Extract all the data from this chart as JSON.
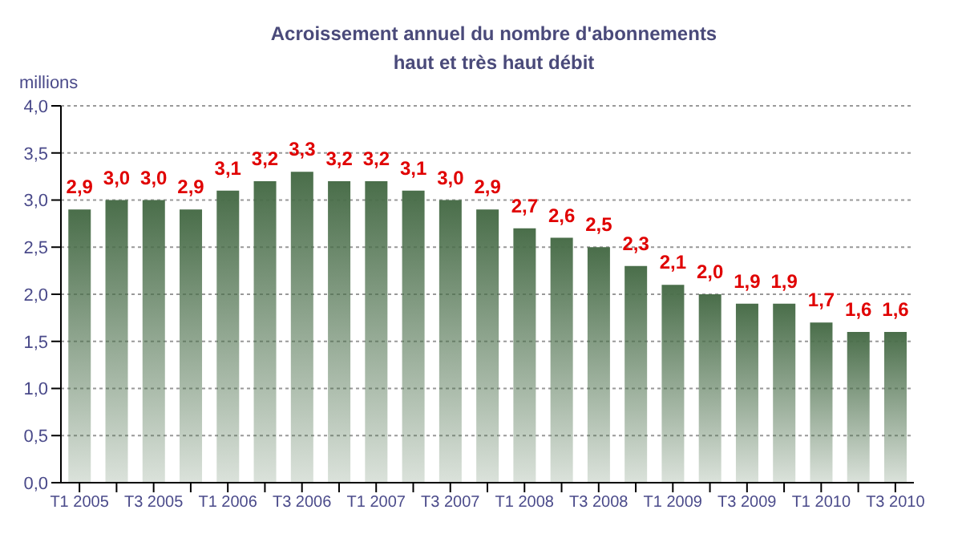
{
  "chart_data": {
    "type": "bar",
    "title": "Acroissement annuel du nombre d'abonnements haut et très haut débit",
    "ylabel": "millions",
    "categories": [
      "T1 2005",
      null,
      "T3 2005",
      null,
      "T1 2006",
      null,
      "T3 2006",
      null,
      "T1 2007",
      null,
      "T3 2007",
      null,
      "T1 2008",
      null,
      "T3 2008",
      null,
      "T1 2009",
      null,
      "T3 2009",
      null,
      "T1 2010",
      null,
      "T3 2010"
    ],
    "values": [
      2.9,
      3.0,
      3.0,
      2.9,
      3.1,
      3.2,
      3.3,
      3.2,
      3.2,
      3.1,
      3.0,
      2.9,
      2.7,
      2.6,
      2.5,
      2.3,
      2.1,
      2.0,
      1.9,
      1.9,
      1.7,
      1.6,
      1.6
    ],
    "value_labels": [
      "2,9",
      "3,0",
      "3,0",
      "2,9",
      "3,1",
      "3,2",
      "3,3",
      "3,2",
      "3,2",
      "3,1",
      "3,0",
      "2,9",
      "2,7",
      "2,6",
      "2,5",
      "2,3",
      "2,1",
      "2,0",
      "1,9",
      "1,9",
      "1,7",
      "1,6",
      "1,6"
    ],
    "color": "#4a6e4a",
    "ylim": [
      0,
      4
    ],
    "yticks": [
      {
        "value": 0,
        "label": "0,0"
      },
      {
        "value": 0.5,
        "label": "0,5"
      },
      {
        "value": 1,
        "label": "1,0"
      },
      {
        "value": 1.5,
        "label": "1,5"
      },
      {
        "value": 2,
        "label": "2,0"
      },
      {
        "value": 2.5,
        "label": "2,5"
      },
      {
        "value": 3,
        "label": "3,0"
      },
      {
        "value": 3.5,
        "label": "3,5"
      },
      {
        "value": 4,
        "label": "4,0"
      }
    ],
    "grid": "y"
  }
}
